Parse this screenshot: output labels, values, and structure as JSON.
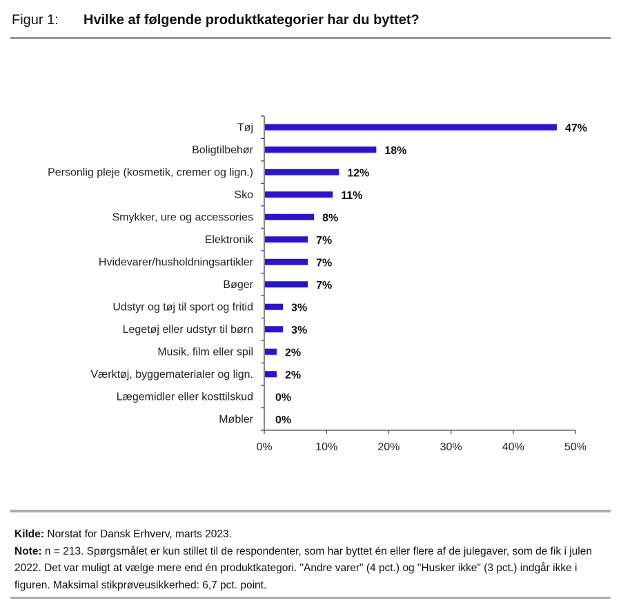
{
  "figure_label": "Figur 1:",
  "footer": {
    "source_label": "Kilde:",
    "source_text": " Norstat for Dansk Erhverv, marts 2023.",
    "note_label": "Note:",
    "note_text": " n = 213. Spørgsmålet er kun stillet til de respondenter, som har byttet én eller flere af de julegaver, som de fik i julen 2022. Det var muligt at vælge mere end én produktkategori. \"Andre varer\" (4 pct.) og \"Husker ikke\" (3 pct.) indgår ikke i figuren. Maksimal stikprøveusikkerhed: 6,7 pct. point."
  },
  "chart_data": {
    "type": "bar",
    "orientation": "horizontal",
    "title": "Hvilke af følgende produktkategorier har du byttet?",
    "xlabel": "",
    "ylabel": "",
    "categories": [
      "Tøj",
      "Boligtilbehør",
      "Personlig pleje (kosmetik, cremer og lign.)",
      "Sko",
      "Smykker, ure og accessories",
      "Elektronik",
      "Hvidevarer/husholdningsartikler",
      "Bøger",
      "Udstyr og tøj til sport og fritid",
      "Legetøj eller udstyr til børn",
      "Musik, film eller spil",
      "Værktøj, byggematerialer og lign.",
      "Lægemidler eller kosttilskud",
      "Møbler"
    ],
    "values": [
      47,
      18,
      12,
      11,
      8,
      7,
      7,
      7,
      3,
      3,
      2,
      2,
      0,
      0
    ],
    "value_labels": [
      "47%",
      "18%",
      "12%",
      "11%",
      "8%",
      "7%",
      "7%",
      "7%",
      "3%",
      "3%",
      "2%",
      "2%",
      "0%",
      "0%"
    ],
    "xlim": [
      0,
      50
    ],
    "xticks": [
      0,
      10,
      20,
      30,
      40,
      50
    ],
    "xtick_labels": [
      "0%",
      "10%",
      "20%",
      "30%",
      "40%",
      "50%"
    ],
    "grid": false,
    "legend": "none",
    "bar_color": "#2a14d2"
  }
}
